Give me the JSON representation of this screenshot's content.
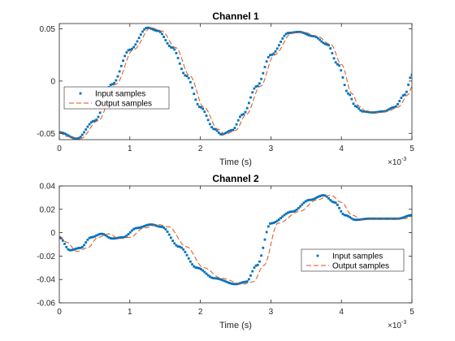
{
  "chart_data": [
    {
      "type": "line",
      "title": "Channel 1",
      "xlabel": "Time (s)",
      "x_exponent_base": "×10",
      "x_exponent_power": "-3",
      "xlim": [
        0,
        5
      ],
      "ylim": [
        -0.056,
        0.055
      ],
      "xticks": [
        0,
        1,
        2,
        3,
        4,
        5
      ],
      "xtick_labels": [
        "0",
        "1",
        "2",
        "3",
        "4",
        "5"
      ],
      "yticks": [
        -0.05,
        0,
        0.05
      ],
      "ytick_labels": [
        "-0.05",
        "0",
        "0.05"
      ],
      "legend_position": "middle-left",
      "grid": false,
      "series": [
        {
          "name": "Input samples",
          "style": "markers",
          "color": "#0072BD",
          "x": [
            0,
            0.25,
            0.5,
            0.75,
            1.0,
            1.25,
            1.4,
            1.6,
            1.8,
            2.0,
            2.2,
            2.3,
            2.45,
            2.6,
            2.8,
            3.0,
            3.25,
            3.4,
            3.6,
            3.8,
            3.95,
            4.1,
            4.2,
            4.3,
            4.45,
            4.6,
            4.75,
            4.9,
            5.0
          ],
          "y": [
            -0.049,
            -0.055,
            -0.038,
            -0.003,
            0.03,
            0.051,
            0.048,
            0.032,
            0.005,
            -0.025,
            -0.046,
            -0.051,
            -0.047,
            -0.032,
            -0.005,
            0.025,
            0.046,
            0.047,
            0.043,
            0.035,
            0.016,
            -0.012,
            -0.024,
            -0.029,
            -0.03,
            -0.029,
            -0.025,
            -0.013,
            0.006
          ]
        },
        {
          "name": "Output samples",
          "style": "dashed",
          "color": "#D95319",
          "x": [
            0,
            0.1,
            0.3,
            0.55,
            0.8,
            1.05,
            1.3,
            1.45,
            1.65,
            1.85,
            2.05,
            2.25,
            2.35,
            2.5,
            2.65,
            2.85,
            3.05,
            3.3,
            3.45,
            3.65,
            3.85,
            4.0,
            4.15,
            4.25,
            4.35,
            4.5,
            4.65,
            4.8,
            4.95,
            5.0
          ],
          "y": [
            -0.049,
            -0.053,
            -0.055,
            -0.038,
            -0.003,
            0.03,
            0.051,
            0.048,
            0.032,
            0.005,
            -0.025,
            -0.046,
            -0.051,
            -0.047,
            -0.032,
            -0.005,
            0.025,
            0.046,
            0.047,
            0.043,
            0.035,
            0.016,
            -0.012,
            -0.024,
            -0.029,
            -0.03,
            -0.029,
            -0.025,
            -0.013,
            -0.005
          ]
        }
      ]
    },
    {
      "type": "line",
      "title": "Channel 2",
      "xlabel": "Time (s)",
      "x_exponent_base": "×10",
      "x_exponent_power": "-3",
      "xlim": [
        0,
        5
      ],
      "ylim": [
        -0.06,
        0.04
      ],
      "xticks": [
        0,
        1,
        2,
        3,
        4,
        5
      ],
      "xtick_labels": [
        "0",
        "1",
        "2",
        "3",
        "4",
        "5"
      ],
      "yticks": [
        -0.06,
        -0.04,
        -0.02,
        0,
        0.02,
        0.04
      ],
      "ytick_labels": [
        "-0.06",
        "-0.04",
        "-0.02",
        "0",
        "0.02",
        "0.04"
      ],
      "legend_position": "middle-right",
      "grid": false,
      "series": [
        {
          "name": "Input samples",
          "style": "markers",
          "color": "#0072BD",
          "x": [
            0,
            0.15,
            0.3,
            0.45,
            0.6,
            0.75,
            0.9,
            1.1,
            1.3,
            1.45,
            1.7,
            1.95,
            2.2,
            2.5,
            2.65,
            2.8,
            3.0,
            3.3,
            3.55,
            3.75,
            3.9,
            4.05,
            4.2,
            4.4,
            4.6,
            4.8,
            5.0
          ],
          "y": [
            -0.004,
            -0.015,
            -0.013,
            -0.004,
            -0.001,
            -0.005,
            -0.004,
            0.004,
            0.007,
            0.005,
            -0.012,
            -0.03,
            -0.039,
            -0.044,
            -0.042,
            -0.028,
            0.008,
            0.018,
            0.028,
            0.032,
            0.026,
            0.015,
            0.011,
            0.012,
            0.012,
            0.012,
            0.015
          ]
        },
        {
          "name": "Output samples",
          "style": "dashed",
          "color": "#D95319",
          "x": [
            0,
            0.1,
            0.25,
            0.4,
            0.55,
            0.7,
            0.85,
            1.0,
            1.2,
            1.4,
            1.55,
            1.8,
            2.05,
            2.3,
            2.6,
            2.75,
            2.9,
            3.1,
            3.4,
            3.65,
            3.85,
            4.0,
            4.15,
            4.3,
            4.5,
            4.7,
            4.9,
            5.0
          ],
          "y": [
            -0.003,
            -0.008,
            -0.016,
            -0.013,
            -0.004,
            -0.001,
            -0.005,
            -0.004,
            0.004,
            0.007,
            0.005,
            -0.012,
            -0.03,
            -0.039,
            -0.044,
            -0.042,
            -0.028,
            0.008,
            0.018,
            0.028,
            0.032,
            0.026,
            0.015,
            0.011,
            0.012,
            0.012,
            0.012,
            0.014
          ]
        }
      ]
    }
  ]
}
